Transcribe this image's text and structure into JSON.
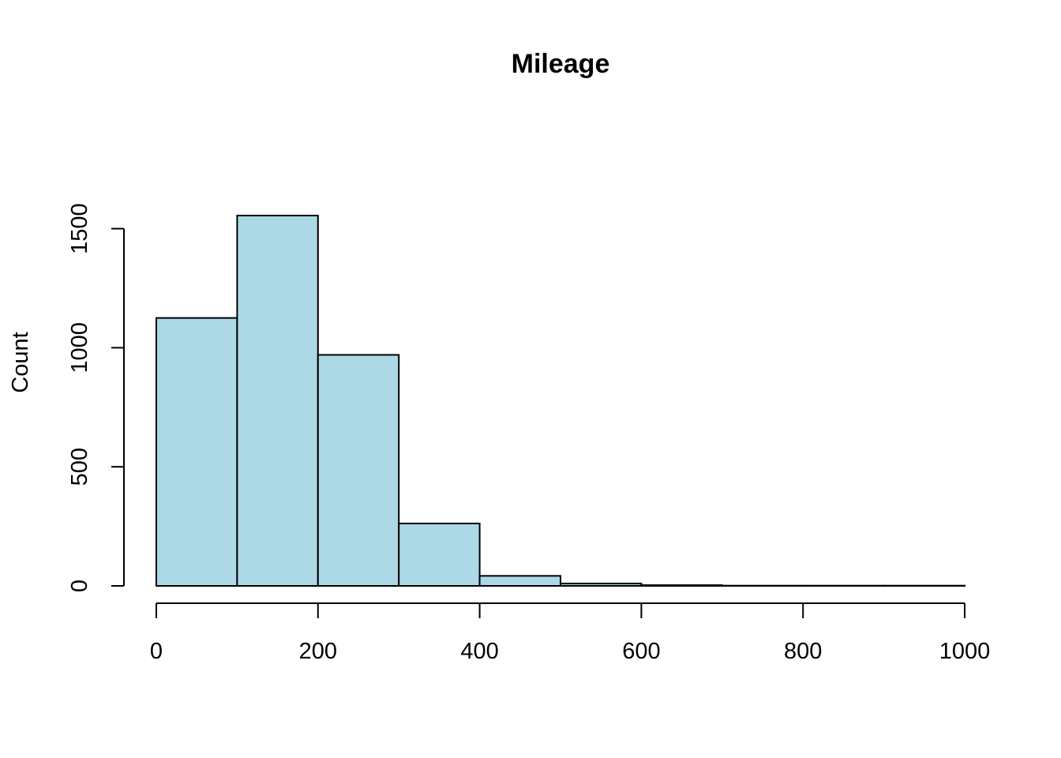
{
  "chart_data": {
    "type": "bar",
    "subtype": "histogram",
    "title": "Mileage",
    "xlabel": "",
    "ylabel": "Count",
    "bin_edges": [
      0,
      100,
      200,
      300,
      400,
      500,
      600,
      700,
      800,
      900,
      1000
    ],
    "values": [
      1125,
      1555,
      970,
      262,
      42,
      10,
      3,
      1,
      1,
      1
    ],
    "xlim": [
      0,
      1000
    ],
    "ylim": [
      0,
      1555
    ],
    "x_ticks": [
      0,
      200,
      400,
      600,
      800,
      1000
    ],
    "y_ticks": [
      0,
      500,
      1000,
      1500
    ],
    "bar_color": "#ADD8E6",
    "bar_border_color": "#000000",
    "grid": false,
    "legend": "none"
  }
}
